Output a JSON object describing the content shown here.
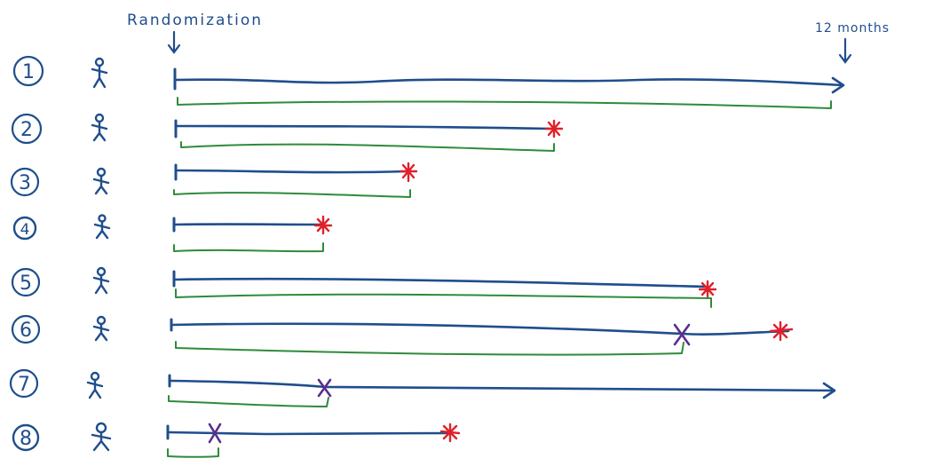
{
  "labels": {
    "start": "Randomization",
    "end": "12 months"
  },
  "colors": {
    "timeline": "#1f4e8c",
    "followup": "#2e8b3a",
    "event": "#e0202a",
    "censor": "#5b2d8e",
    "ink": "#1f4e8c"
  },
  "participants": [
    {
      "number": "1",
      "outcome": "reached 12 months"
    },
    {
      "number": "2",
      "outcome": "event"
    },
    {
      "number": "3",
      "outcome": "event"
    },
    {
      "number": "4",
      "outcome": "event"
    },
    {
      "number": "5",
      "outcome": "event"
    },
    {
      "number": "6",
      "outcome": "censored then event"
    },
    {
      "number": "7",
      "outcome": "censored, reached 12 months"
    },
    {
      "number": "8",
      "outcome": "censored then event"
    }
  ]
}
